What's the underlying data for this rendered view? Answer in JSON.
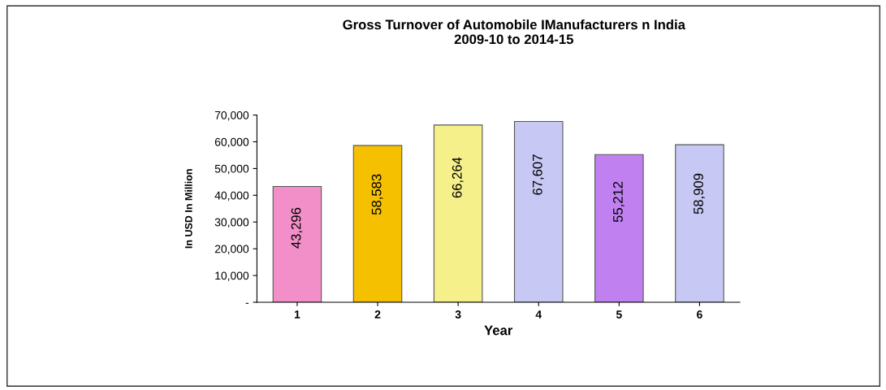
{
  "chart_data": {
    "type": "bar",
    "title": "Gross Turnover of Automobile IManufacturers n India\n2009-10 to 2014-15",
    "xlabel": "Year",
    "ylabel": "In USD In Million",
    "categories": [
      "1",
      "2",
      "3",
      "4",
      "5",
      "6"
    ],
    "values": [
      43296,
      58583,
      66264,
      67607,
      55212,
      58909
    ],
    "colors": [
      "#f28fc8",
      "#f5c000",
      "#f5f08a",
      "#c8c8f5",
      "#c080f0",
      "#c8c8f5"
    ],
    "value_labels": [
      "43,296",
      "58,583",
      "66,264",
      "67,607",
      "55,212",
      "58,909"
    ],
    "ylim": [
      0,
      70000
    ],
    "yticks": [
      {
        "value": 0,
        "label": "-"
      },
      {
        "value": 10000,
        "label": "10,000"
      },
      {
        "value": 20000,
        "label": "20,000"
      },
      {
        "value": 30000,
        "label": "30,000"
      },
      {
        "value": 40000,
        "label": "40,000"
      },
      {
        "value": 50000,
        "label": "50,000"
      },
      {
        "value": 60000,
        "label": "60,000"
      },
      {
        "value": 70000,
        "label": "70,000"
      }
    ],
    "grid": false,
    "legend": false
  }
}
